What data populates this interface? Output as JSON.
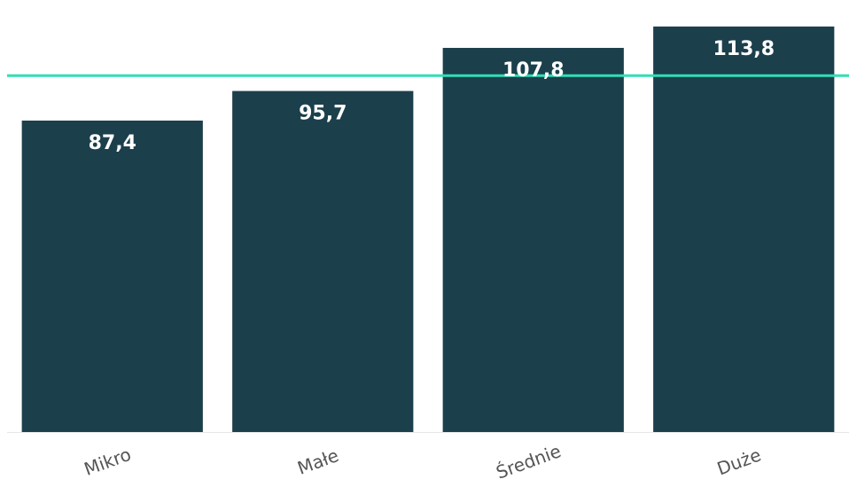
{
  "chart_data": {
    "type": "bar",
    "categories": [
      "Mikro",
      "Małe",
      "Średnie",
      "Duże"
    ],
    "values": [
      87.4,
      95.7,
      107.8,
      113.8
    ],
    "value_labels": [
      "87,4",
      "95,7",
      "107,8",
      "113,8"
    ],
    "reference_line": 100,
    "ylim": [
      0,
      118
    ],
    "title": "",
    "xlabel": "",
    "ylabel": "",
    "grid": false,
    "colors": {
      "bar": "#1c3f4c",
      "reference_line": "#2ee0b4",
      "value_label": "#ffffff",
      "category_label": "#555555",
      "axis": "#e6e6e6"
    }
  }
}
